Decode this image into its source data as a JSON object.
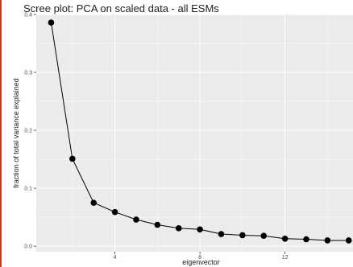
{
  "chart_data": {
    "type": "line",
    "title": "Scree plot: PCA on scaled data - all ESMs",
    "xlabel": "eigenvector",
    "ylabel": "fraction of total variance explained",
    "x": [
      1,
      2,
      3,
      4,
      5,
      6,
      7,
      8,
      9,
      10,
      11,
      12,
      13,
      14,
      15
    ],
    "values": [
      0.386,
      0.151,
      0.075,
      0.059,
      0.046,
      0.037,
      0.031,
      0.029,
      0.021,
      0.019,
      0.018,
      0.013,
      0.012,
      0.01,
      0.01
    ],
    "xlim": [
      0.3,
      15.2
    ],
    "ylim": [
      -0.0095,
      0.4
    ],
    "xticks": [
      4,
      8,
      12
    ],
    "yticks": [
      0.0,
      0.1,
      0.2,
      0.3,
      0.4
    ],
    "xtick_labels": [
      "4",
      "8",
      "12"
    ],
    "ytick_labels": [
      "0.0",
      "0.1",
      "0.2",
      "0.3",
      "0.4"
    ],
    "grid": true,
    "colors": {
      "panel": "#ebebeb",
      "grid": "#ffffff",
      "line": "#000000",
      "points": "#000000"
    }
  }
}
